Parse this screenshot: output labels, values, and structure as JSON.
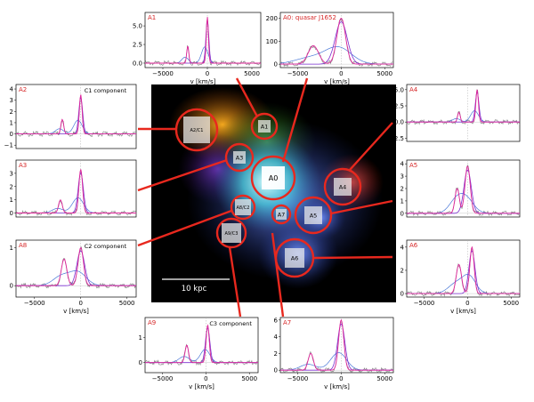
{
  "figure": {
    "image": {
      "scale_label": "10 kpc"
    },
    "regions": [
      {
        "id": "A1",
        "label": "A1"
      },
      {
        "id": "A0",
        "label": "A0"
      },
      {
        "id": "A2C1",
        "label": "A2/C1"
      },
      {
        "id": "A3",
        "label": "A3"
      },
      {
        "id": "A4",
        "label": "A4"
      },
      {
        "id": "A5",
        "label": "A5"
      },
      {
        "id": "A6",
        "label": "A6"
      },
      {
        "id": "A7",
        "label": "A7"
      },
      {
        "id": "A8C2",
        "label": "A8/C2"
      },
      {
        "id": "A9C3",
        "label": "A9/C3"
      }
    ],
    "xlabel": "v [km/s]",
    "colors": {
      "panel_label": "#d62728",
      "connector": "#e8281e",
      "circle": "#e8281e",
      "magenta": "#e0259a",
      "purple": "#7b2fd0",
      "blue": "#4a78d8",
      "grey": "#808080"
    }
  },
  "chart_data": [
    {
      "id": "A1",
      "type": "line",
      "label": "A1",
      "annotation": "",
      "xlabel": "v [km/s]",
      "xlim": [
        -7000,
        6000
      ],
      "ylim": [
        -0.6,
        6.8
      ],
      "xticks": [
        "−5000",
        "0",
        "5000"
      ],
      "yticks": [
        "0.0",
        "2.5",
        "5.0"
      ],
      "lines": [
        {
          "x": -2200,
          "a": 2.3,
          "s": 120
        },
        {
          "x": 0,
          "a": 6.2,
          "s": 120
        }
      ]
    },
    {
      "id": "A0",
      "type": "line",
      "label": "A0: quasar J1652",
      "annotation": "",
      "xlabel": "v [km/s]",
      "xlim": [
        -7000,
        6000
      ],
      "ylim": [
        -15,
        225
      ],
      "xticks": [
        "−5000",
        "0",
        "5000"
      ],
      "yticks": [
        "0",
        "100",
        "200"
      ],
      "lines": [
        {
          "x": -3200,
          "a": 80,
          "s": 600
        },
        {
          "x": 0,
          "a": 200,
          "s": 500
        }
      ]
    },
    {
      "id": "A2",
      "type": "line",
      "label": "A2",
      "annotation": "C1 component",
      "xlabel": "",
      "xlim": [
        -7000,
        6000
      ],
      "ylim": [
        -1.3,
        4.4
      ],
      "xticks": [],
      "yticks": [
        "−1",
        "0",
        "1",
        "2",
        "3",
        "4"
      ],
      "lines": [
        {
          "x": -2000,
          "a": 1.3,
          "s": 150
        },
        {
          "x": 0,
          "a": 3.5,
          "s": 150
        }
      ]
    },
    {
      "id": "A3",
      "type": "line",
      "label": "A3",
      "annotation": "",
      "xlabel": "",
      "xlim": [
        -7000,
        6000
      ],
      "ylim": [
        -0.3,
        4.0
      ],
      "xticks": [],
      "yticks": [
        "0",
        "1",
        "2",
        "3"
      ],
      "lines": [
        {
          "x": -2200,
          "a": 1.0,
          "s": 200
        },
        {
          "x": 0,
          "a": 3.3,
          "s": 200
        }
      ]
    },
    {
      "id": "A8",
      "type": "line",
      "label": "A8",
      "annotation": "C2 component",
      "xlabel": "v [km/s]",
      "xlim": [
        -7000,
        6000
      ],
      "ylim": [
        -0.3,
        1.2
      ],
      "xticks": [
        "−5000",
        "0",
        "5000"
      ],
      "yticks": [
        "0",
        "1"
      ],
      "lines": [
        {
          "x": -1800,
          "a": 0.7,
          "s": 300
        },
        {
          "x": 0,
          "a": 1.0,
          "s": 300
        }
      ]
    },
    {
      "id": "A4",
      "type": "line",
      "label": "A4",
      "annotation": "",
      "xlabel": "",
      "xlim": [
        -7000,
        6000
      ],
      "ylim": [
        -3.0,
        5.8
      ],
      "xticks": [],
      "yticks": [
        "−2.5",
        "0.0",
        "2.5",
        "5.0"
      ],
      "lines": [
        {
          "x": -1000,
          "a": 1.5,
          "s": 150
        },
        {
          "x": 1100,
          "a": 5.0,
          "s": 150
        }
      ]
    },
    {
      "id": "A5",
      "type": "line",
      "label": "A5",
      "annotation": "",
      "xlabel": "",
      "xlim": [
        -7000,
        6000
      ],
      "ylim": [
        -0.3,
        4.3
      ],
      "xticks": [],
      "yticks": [
        "0",
        "1",
        "2",
        "3",
        "4"
      ],
      "lines": [
        {
          "x": -1200,
          "a": 2.0,
          "s": 250
        },
        {
          "x": 0,
          "a": 3.8,
          "s": 300
        }
      ]
    },
    {
      "id": "A6",
      "type": "line",
      "label": "A6",
      "annotation": "",
      "xlabel": "v [km/s]",
      "xlim": [
        -7000,
        6000
      ],
      "ylim": [
        -0.3,
        4.6
      ],
      "xticks": [
        "−5000",
        "0",
        "5000"
      ],
      "yticks": [
        "0",
        "2",
        "4"
      ],
      "lines": [
        {
          "x": -1000,
          "a": 2.5,
          "s": 300
        },
        {
          "x": 500,
          "a": 4.0,
          "s": 250
        }
      ]
    },
    {
      "id": "A9",
      "type": "line",
      "label": "A9",
      "annotation": "C3 component",
      "xlabel": "v [km/s]",
      "xlim": [
        -7000,
        6000
      ],
      "ylim": [
        -0.4,
        1.8
      ],
      "xticks": [
        "−5000",
        "0",
        "5000"
      ],
      "yticks": [
        "0",
        "1"
      ],
      "lines": [
        {
          "x": -2200,
          "a": 0.7,
          "s": 200
        },
        {
          "x": 200,
          "a": 1.5,
          "s": 180
        }
      ]
    },
    {
      "id": "A7",
      "type": "line",
      "label": "A7",
      "annotation": "",
      "xlabel": "v [km/s]",
      "xlim": [
        -7000,
        6000
      ],
      "ylim": [
        -0.3,
        6.3
      ],
      "xticks": [
        "−5000",
        "0",
        "5000"
      ],
      "yticks": [
        "0",
        "2",
        "4",
        "6"
      ],
      "lines": [
        {
          "x": -3500,
          "a": 2.0,
          "s": 300
        },
        {
          "x": 0,
          "a": 6.0,
          "s": 300
        }
      ]
    }
  ]
}
